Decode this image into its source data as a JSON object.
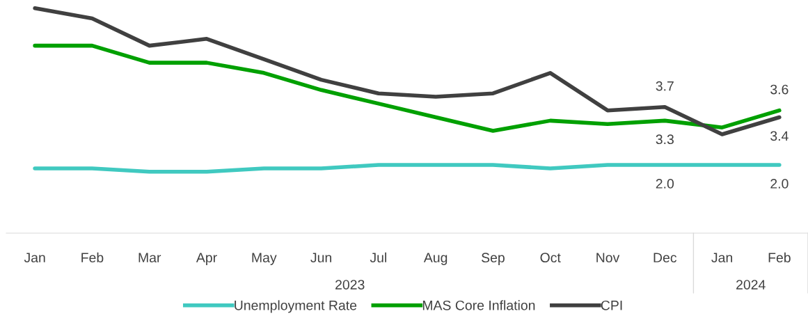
{
  "chart_data": {
    "type": "line",
    "categories": [
      "Jan",
      "Feb",
      "Mar",
      "Apr",
      "May",
      "Jun",
      "Jul",
      "Aug",
      "Sep",
      "Oct",
      "Nov",
      "Dec",
      "Jan",
      "Feb"
    ],
    "series": [
      {
        "name": "Unemployment Rate",
        "color": "#40c9c0",
        "values": [
          1.9,
          1.9,
          1.8,
          1.8,
          1.9,
          1.9,
          2.0,
          2.0,
          2.0,
          1.9,
          2.0,
          2.0,
          2.0,
          2.0
        ],
        "value_labels": [
          null,
          null,
          null,
          null,
          null,
          null,
          null,
          null,
          null,
          null,
          null,
          "2.0",
          null,
          "2.0"
        ]
      },
      {
        "name": "MAS Core Inflation",
        "color": "#00a000",
        "values": [
          5.5,
          5.5,
          5.0,
          5.0,
          4.7,
          4.2,
          3.8,
          3.4,
          3.0,
          3.3,
          3.2,
          3.3,
          3.1,
          3.6
        ],
        "value_labels": [
          null,
          null,
          null,
          null,
          null,
          null,
          null,
          null,
          null,
          null,
          null,
          "3.3",
          null,
          "3.6"
        ]
      },
      {
        "name": "CPI",
        "color": "#404040",
        "values": [
          6.6,
          6.3,
          5.5,
          5.7,
          5.1,
          4.5,
          4.1,
          4.0,
          4.1,
          4.7,
          3.6,
          3.7,
          2.9,
          3.4
        ],
        "value_labels": [
          null,
          null,
          null,
          null,
          null,
          null,
          null,
          null,
          null,
          null,
          null,
          "3.7",
          null,
          "3.4"
        ]
      }
    ],
    "tick_labels": "x",
    "annotations": [
      "2023",
      "2024"
    ],
    "legend": "bottom",
    "grid": false,
    "marker": "none",
    "line_style": "solid"
  }
}
